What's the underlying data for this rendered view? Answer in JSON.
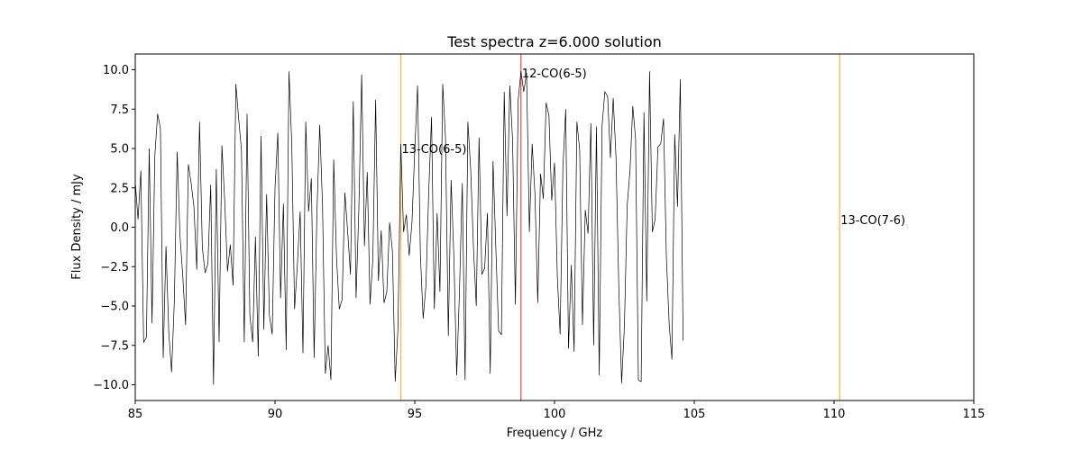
{
  "chart_data": {
    "type": "line",
    "title": "Test spectra z=6.000 solution",
    "xlabel": "Frequency / GHz",
    "ylabel": "Flux Density / mJy",
    "xlim": [
      85,
      115
    ],
    "ylim": [
      -11,
      11
    ],
    "xticks": [
      85,
      90,
      95,
      100,
      105,
      110,
      115
    ],
    "yticks": [
      -10.0,
      -7.5,
      -5.0,
      -2.5,
      0.0,
      2.5,
      5.0,
      7.5,
      10.0
    ],
    "ytick_labels": [
      "−10.0",
      "−7.5",
      "−5.0",
      "−2.5",
      "0.0",
      "2.5",
      "5.0",
      "7.5",
      "10.0"
    ],
    "grid": false,
    "series": [
      {
        "color": "#000000",
        "x_start": 85.0,
        "x_step": 0.1,
        "values": [
          2.9,
          0.5,
          3.6,
          -7.3,
          -7.0,
          5.0,
          -6.1,
          4.5,
          7.2,
          6.3,
          -8.3,
          -1.2,
          -6.7,
          -9.2,
          -4.6,
          4.8,
          -0.5,
          -3.1,
          -6.2,
          4.0,
          2.8,
          1.3,
          -2.7,
          6.7,
          -1.3,
          -2.9,
          -2.3,
          2.7,
          -10.0,
          3.7,
          -7.3,
          5.2,
          1.7,
          -2.8,
          -1.1,
          -3.7,
          9.1,
          6.9,
          4.9,
          -7.3,
          7.2,
          -5.6,
          -7.3,
          -0.6,
          -8.2,
          5.8,
          -6.5,
          2.1,
          -5.6,
          -6.8,
          2.5,
          6.0,
          -4.5,
          1.5,
          -7.8,
          9.9,
          5.3,
          -5.2,
          -2.4,
          1.0,
          -8.0,
          6.7,
          1.0,
          3.1,
          -8.3,
          1.0,
          6.5,
          1.4,
          -9.3,
          -7.5,
          -9.7,
          4.3,
          -1.9,
          -5.2,
          -4.6,
          2.2,
          -0.3,
          -3.0,
          8.0,
          -4.5,
          1.2,
          9.7,
          -1.2,
          3.5,
          -4.9,
          -2.0,
          8.1,
          -3.4,
          -0.2,
          -4.8,
          -4.1,
          0.3,
          -1.5,
          -9.8,
          -6.4,
          5.3,
          -0.3,
          0.8,
          -1.8,
          0.3,
          4.9,
          9.0,
          -1.7,
          -5.8,
          -3.7,
          2.3,
          7.0,
          -5.2,
          0.9,
          -4.1,
          9.1,
          5.6,
          -6.9,
          3.0,
          -1.9,
          -9.4,
          -4.0,
          2.8,
          -9.7,
          6.7,
          3.7,
          -1.3,
          -5.0,
          5.7,
          -3.0,
          -2.6,
          0.9,
          -9.3,
          4.2,
          -1.3,
          -6.6,
          -6.8,
          8.6,
          0.7,
          9.0,
          5.5,
          -4.9,
          8.1,
          9.9,
          8.6,
          9.8,
          -0.3,
          5.3,
          2.1,
          -4.8,
          3.4,
          1.8,
          7.9,
          7.1,
          1.7,
          4.1,
          -3.1,
          -6.8,
          3.8,
          7.5,
          -7.7,
          -2.4,
          -7.9,
          6.7,
          4.9,
          -6.2,
          1.1,
          -0.4,
          6.6,
          -7.5,
          6.4,
          -9.4,
          6.4,
          8.6,
          8.3,
          4.4,
          8.2,
          4.4,
          -3.8,
          -9.9,
          -6.3,
          1.4,
          3.6,
          7.7,
          5.6,
          -9.7,
          -9.8,
          7.3,
          -4.7,
          9.9,
          -0.3,
          0.5,
          5.1,
          5.3,
          6.9,
          -1.8,
          -6.1,
          -8.4,
          5.9,
          1.3,
          9.4,
          -7.2
        ]
      }
    ],
    "lines": [
      {
        "label": "13-CO(6-5)",
        "x": 94.5,
        "color": "#f5b942",
        "label_y": 5.0
      },
      {
        "label": "12-CO(6-5)",
        "x": 98.8,
        "color": "#e8474c",
        "label_y": 9.8
      },
      {
        "label": "13-CO(7-6)",
        "x": 110.2,
        "color": "#f5b942",
        "label_y": 0.5
      }
    ]
  }
}
